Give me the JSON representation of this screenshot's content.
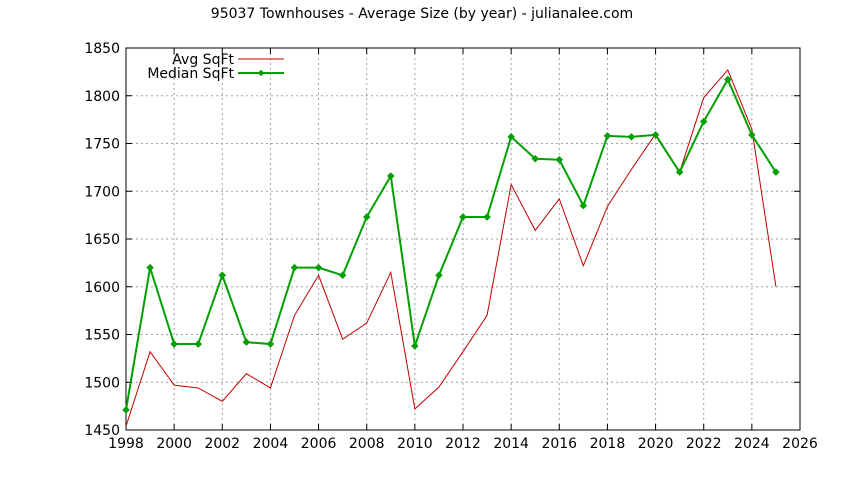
{
  "chart_data": {
    "type": "line",
    "title": "95037 Townhouses - Average Size (by year) - julianalee.com",
    "xlabel": "",
    "ylabel": "",
    "xlim": [
      1998,
      2026
    ],
    "ylim": [
      1450,
      1850
    ],
    "xticks": [
      1998,
      2000,
      2002,
      2004,
      2006,
      2008,
      2010,
      2012,
      2014,
      2016,
      2018,
      2020,
      2022,
      2024,
      2026
    ],
    "yticks": [
      1450,
      1500,
      1550,
      1600,
      1650,
      1700,
      1750,
      1800,
      1850
    ],
    "grid": true,
    "legend_position": "top-left",
    "series": [
      {
        "name": "Avg SqFt",
        "color": "#c00000",
        "marker": "none",
        "x": [
          1998,
          1999,
          2000,
          2001,
          2002,
          2003,
          2004,
          2005,
          2006,
          2007,
          2008,
          2009,
          2010,
          2011,
          2012,
          2013,
          2014,
          2015,
          2016,
          2017,
          2018,
          2019,
          2020,
          2021,
          2022,
          2023,
          2024,
          2025
        ],
        "y": [
          1454,
          1532,
          1497,
          1494,
          1480,
          1509,
          1494,
          1570,
          1612,
          1545,
          1562,
          1615,
          1472,
          1495,
          1532,
          1570,
          1707,
          1659,
          1692,
          1622,
          1684,
          1723,
          1760,
          1720,
          1798,
          1827,
          1765,
          1600
        ]
      },
      {
        "name": "Median SqFt",
        "color": "#00a000",
        "marker": "diamond",
        "x": [
          1998,
          1999,
          2000,
          2001,
          2002,
          2003,
          2004,
          2005,
          2006,
          2007,
          2008,
          2009,
          2010,
          2011,
          2012,
          2013,
          2014,
          2015,
          2016,
          2017,
          2018,
          2019,
          2020,
          2021,
          2022,
          2023,
          2024,
          2025
        ],
        "y": [
          1471,
          1620,
          1540,
          1540,
          1612,
          1542,
          1540,
          1620,
          1620,
          1612,
          1673,
          1716,
          1538,
          1612,
          1673,
          1673,
          1757,
          1734,
          1733,
          1685,
          1758,
          1757,
          1759,
          1720,
          1773,
          1817,
          1759,
          1720
        ]
      }
    ]
  }
}
